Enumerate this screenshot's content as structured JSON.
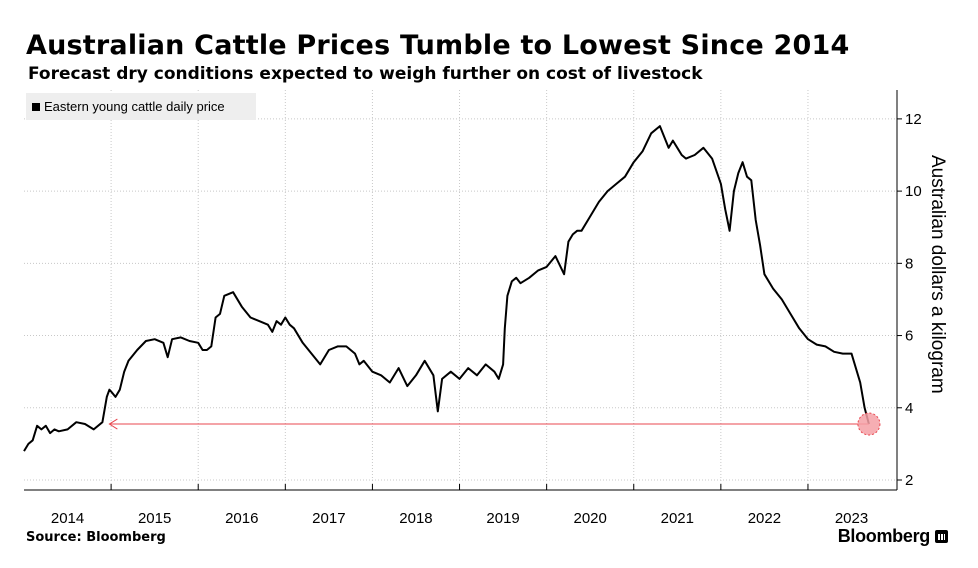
{
  "title": "Australian Cattle Prices Tumble to Lowest Since 2014",
  "subtitle": "Forecast dry conditions expected to weigh further on cost of livestock",
  "source": "Source: Bloomberg",
  "brand": "Bloomberg",
  "colors": {
    "line": "#000000",
    "highlight": "#e8474f",
    "grid": "#c8c8c8",
    "legend_bg": "#eeeeee"
  },
  "chart_data": {
    "type": "line",
    "title": "Australian Cattle Prices Tumble to Lowest Since 2014",
    "xlabel": "",
    "ylabel": "Australian dollars a kilogram",
    "ylim": [
      2,
      12.8
    ],
    "yticks": [
      2,
      4,
      6,
      8,
      10,
      12
    ],
    "xlim": [
      2014.0,
      2023.85
    ],
    "xticks": [
      "2014",
      "2015",
      "2016",
      "2017",
      "2018",
      "2019",
      "2020",
      "2021",
      "2022",
      "2023"
    ],
    "grid": true,
    "legend_position": "top-left",
    "series": [
      {
        "name": "Eastern young cattle daily price",
        "x": [
          2014.0,
          2014.05,
          2014.1,
          2014.15,
          2014.2,
          2014.25,
          2014.3,
          2014.35,
          2014.4,
          2014.5,
          2014.6,
          2014.7,
          2014.8,
          2014.9,
          2014.95,
          2014.98,
          2015.0,
          2015.05,
          2015.1,
          2015.15,
          2015.2,
          2015.3,
          2015.4,
          2015.5,
          2015.6,
          2015.65,
          2015.7,
          2015.8,
          2015.9,
          2016.0,
          2016.05,
          2016.1,
          2016.15,
          2016.2,
          2016.25,
          2016.3,
          2016.4,
          2016.5,
          2016.6,
          2016.7,
          2016.8,
          2016.85,
          2016.9,
          2016.95,
          2017.0,
          2017.05,
          2017.1,
          2017.2,
          2017.3,
          2017.4,
          2017.5,
          2017.6,
          2017.7,
          2017.8,
          2017.85,
          2017.9,
          2018.0,
          2018.1,
          2018.2,
          2018.3,
          2018.4,
          2018.5,
          2018.6,
          2018.7,
          2018.75,
          2018.8,
          2018.9,
          2019.0,
          2019.1,
          2019.2,
          2019.3,
          2019.4,
          2019.45,
          2019.5,
          2019.52,
          2019.55,
          2019.6,
          2019.65,
          2019.7,
          2019.8,
          2019.9,
          2020.0,
          2020.1,
          2020.2,
          2020.25,
          2020.3,
          2020.35,
          2020.4,
          2020.5,
          2020.6,
          2020.7,
          2020.8,
          2020.9,
          2021.0,
          2021.1,
          2021.2,
          2021.3,
          2021.4,
          2021.45,
          2021.5,
          2021.55,
          2021.6,
          2021.7,
          2021.8,
          2021.9,
          2022.0,
          2022.05,
          2022.1,
          2022.15,
          2022.2,
          2022.25,
          2022.3,
          2022.35,
          2022.4,
          2022.45,
          2022.5,
          2022.6,
          2022.7,
          2022.8,
          2022.9,
          2023.0,
          2023.1,
          2023.2,
          2023.3,
          2023.4,
          2023.5,
          2023.6,
          2023.65,
          2023.7
        ],
        "values": [
          2.8,
          3.0,
          3.1,
          3.5,
          3.4,
          3.5,
          3.3,
          3.4,
          3.35,
          3.4,
          3.6,
          3.55,
          3.4,
          3.6,
          4.3,
          4.5,
          4.45,
          4.3,
          4.5,
          5.0,
          5.3,
          5.6,
          5.85,
          5.9,
          5.8,
          5.4,
          5.9,
          5.95,
          5.85,
          5.8,
          5.6,
          5.6,
          5.7,
          6.5,
          6.6,
          7.1,
          7.2,
          6.8,
          6.5,
          6.4,
          6.3,
          6.1,
          6.4,
          6.3,
          6.5,
          6.3,
          6.2,
          5.8,
          5.5,
          5.2,
          5.6,
          5.7,
          5.7,
          5.5,
          5.2,
          5.3,
          5.0,
          4.9,
          4.7,
          5.1,
          4.6,
          4.9,
          5.3,
          4.9,
          3.9,
          4.8,
          5.0,
          4.8,
          5.1,
          4.9,
          5.2,
          5.0,
          4.8,
          5.2,
          6.2,
          7.1,
          7.5,
          7.6,
          7.45,
          7.6,
          7.8,
          7.9,
          8.2,
          7.7,
          8.6,
          8.8,
          8.9,
          8.9,
          9.3,
          9.7,
          10.0,
          10.2,
          10.4,
          10.8,
          11.1,
          11.6,
          11.8,
          11.2,
          11.4,
          11.2,
          11.0,
          10.9,
          11.0,
          11.2,
          10.9,
          10.2,
          9.5,
          8.9,
          10.0,
          10.5,
          10.8,
          10.4,
          10.3,
          9.2,
          8.5,
          7.7,
          7.3,
          7.0,
          6.6,
          6.2,
          5.9,
          5.75,
          5.7,
          5.55,
          5.5,
          5.5,
          4.7,
          4.0,
          3.55
        ]
      }
    ],
    "annotation": {
      "type": "horizontal-arrow",
      "y": 3.55,
      "x_from": 2023.7,
      "x_to": 2014.98
    }
  }
}
